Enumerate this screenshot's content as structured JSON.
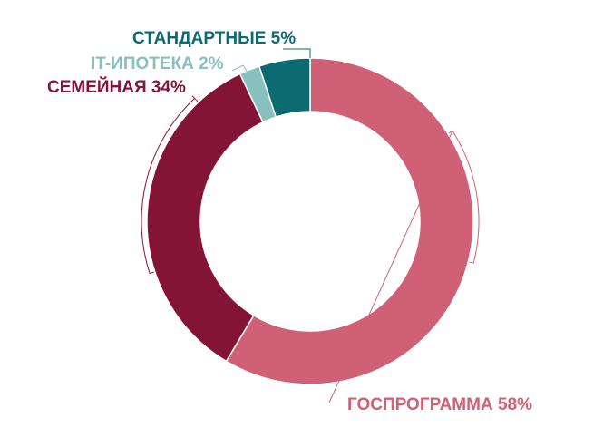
{
  "chart_data": {
    "type": "pie",
    "donut": true,
    "slices": [
      {
        "label": "ГОСПРОГРАММА 58%",
        "value": 58,
        "color": "#d06075"
      },
      {
        "label": "СЕМЕЙНАЯ 34%",
        "value": 34,
        "color": "#841436"
      },
      {
        "label": "IT-ИПОТЕКА 2%",
        "value": 2,
        "color": "#88bfbf"
      },
      {
        "label": "СТАНДАРТНЫЕ 5%",
        "value": 5,
        "color": "#0b6b70"
      }
    ]
  }
}
